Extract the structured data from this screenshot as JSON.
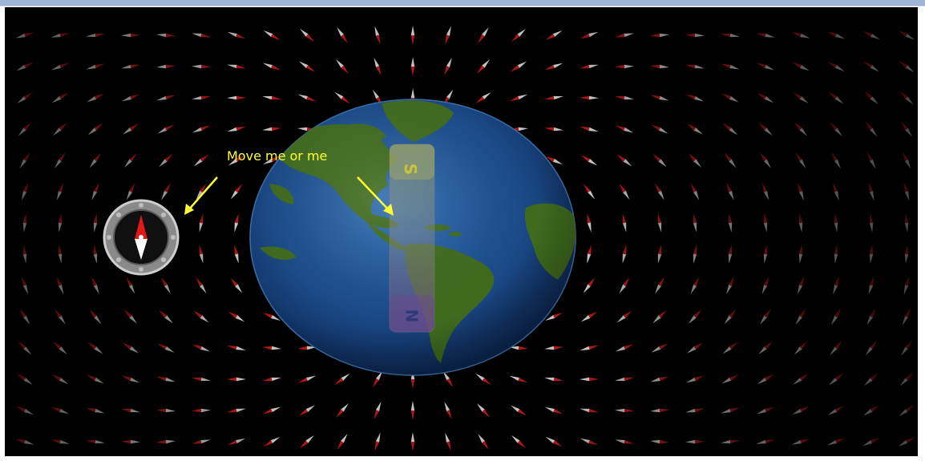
{
  "hint_label": "Move me or me",
  "magnet": {
    "south_label": "S",
    "north_label": "N"
  },
  "colors": {
    "background": "#000000",
    "hint_text": "#ffff33",
    "field_needle_north": "#c41a1a",
    "field_needle_south": "#d8d8d8",
    "compass_north": "#e01818",
    "compass_south": "#ffffff",
    "ocean": "#1f4f8c",
    "land": "#3d6a1e"
  },
  "icons": {
    "compass": "compass-icon",
    "arrows": "arrow-pointer"
  }
}
